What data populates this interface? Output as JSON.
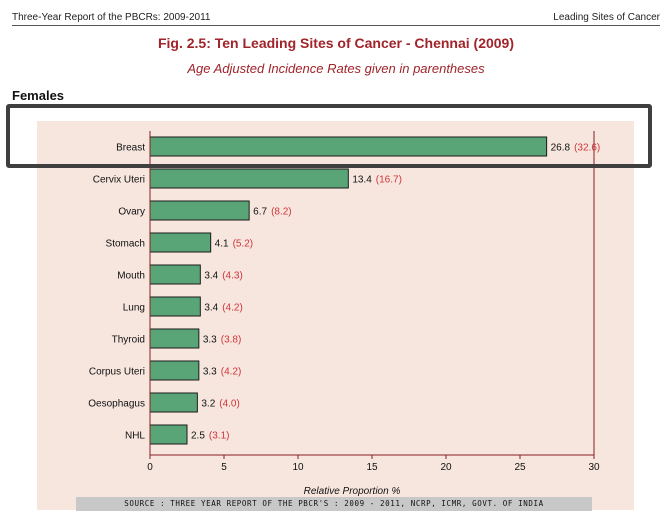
{
  "header": {
    "left": "Three-Year Report of the PBCRs: 2009-2011",
    "right": "Leading Sites of Cancer"
  },
  "figure": {
    "title": "Fig. 2.5: Ten Leading Sites of Cancer - Chennai (2009)",
    "subtitle": "Age Adjusted Incidence Rates given in parentheses",
    "section": "Females",
    "source": "SOURCE : THREE YEAR REPORT OF THE PBCR'S : 2009 - 2011, NCRP, ICMR, GOVT. OF INDIA"
  },
  "colors": {
    "bar_fill": "#5aa577",
    "bar_stroke": "#1b1b1b",
    "axis": "#8a1f22",
    "panel_bg": "#f7e6de",
    "aai_text": "#d0353a",
    "title_text": "#a0242a",
    "highlight_box": "#3f3f3f"
  },
  "chart_data": {
    "type": "bar",
    "orientation": "horizontal",
    "categories": [
      "Breast",
      "Cervix Uteri",
      "Ovary",
      "Stomach",
      "Mouth",
      "Lung",
      "Thyroid",
      "Corpus Uteri",
      "Oesophagus",
      "NHL"
    ],
    "values": [
      26.8,
      13.4,
      6.7,
      4.1,
      3.4,
      3.4,
      3.3,
      3.3,
      3.2,
      2.5
    ],
    "value_labels": [
      "26.8",
      "13.4",
      "6.7",
      "4.1",
      "3.4",
      "3.4",
      "3.3",
      "3.3",
      "3.2",
      "2.5"
    ],
    "aai_labels": [
      "(32.6)",
      "(16.7)",
      "(8.2)",
      "(5.2)",
      "(4.3)",
      "(4.2)",
      "(3.8)",
      "(4.2)",
      "(4.0)",
      "(3.1)"
    ],
    "xlabel": "Relative Proportion %",
    "xlim": [
      0,
      30
    ],
    "xticks": [
      0,
      5,
      10,
      15,
      20,
      25,
      30
    ],
    "highlighted_category": "Breast",
    "grid": false
  }
}
